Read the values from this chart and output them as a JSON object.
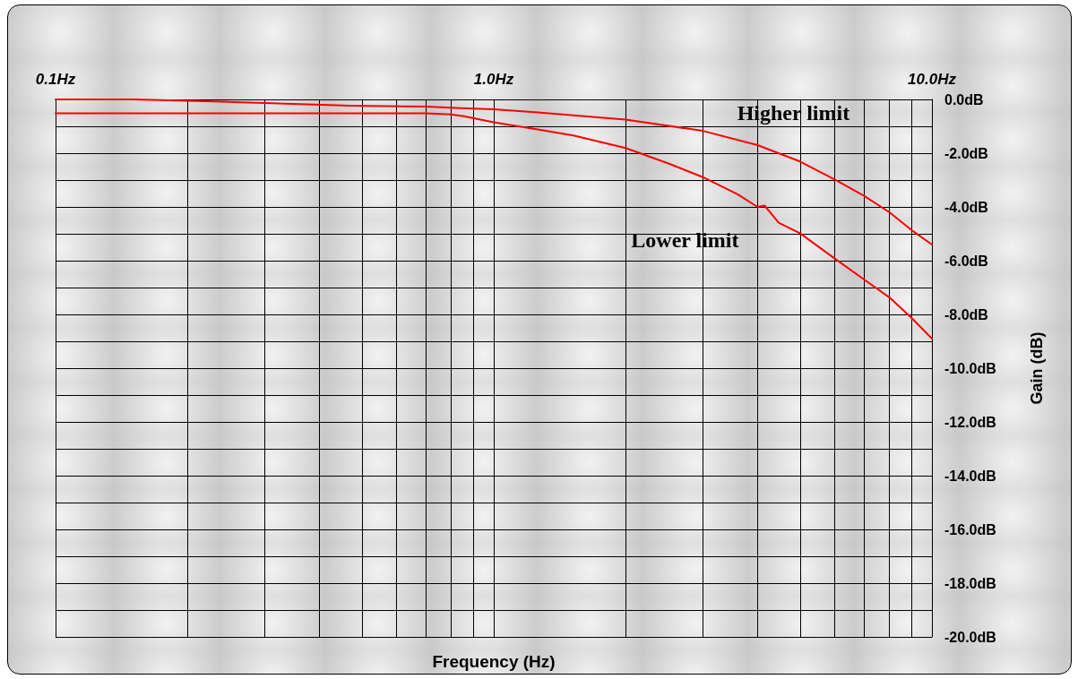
{
  "chart_data": {
    "type": "line",
    "xlabel": "Frequency (Hz)",
    "ylabel": "Gain (dB)",
    "log": "x",
    "grid": true,
    "legend": false,
    "marker": "none",
    "line_style": "solid",
    "xlim": [
      0.1,
      10
    ],
    "ylim": [
      -20,
      0
    ],
    "xticks": [
      {
        "value": 0.1,
        "label": "0.1Hz"
      },
      {
        "value": 0.2,
        "label": null
      },
      {
        "value": 0.3,
        "label": null
      },
      {
        "value": 0.4,
        "label": null
      },
      {
        "value": 0.5,
        "label": null
      },
      {
        "value": 0.6,
        "label": null
      },
      {
        "value": 0.7,
        "label": null
      },
      {
        "value": 0.8,
        "label": null
      },
      {
        "value": 0.9,
        "label": null
      },
      {
        "value": 1,
        "label": "1.0Hz"
      },
      {
        "value": 2,
        "label": null
      },
      {
        "value": 3,
        "label": null
      },
      {
        "value": 4,
        "label": null
      },
      {
        "value": 5,
        "label": null
      },
      {
        "value": 6,
        "label": null
      },
      {
        "value": 7,
        "label": null
      },
      {
        "value": 8,
        "label": null
      },
      {
        "value": 9,
        "label": null
      },
      {
        "value": 10,
        "label": "10.0Hz"
      }
    ],
    "yticks": [
      {
        "value": 0,
        "label": "0.0dB"
      },
      {
        "value": -1,
        "label": null
      },
      {
        "value": -2,
        "label": "-2.0dB"
      },
      {
        "value": -3,
        "label": null
      },
      {
        "value": -4,
        "label": "-4.0dB"
      },
      {
        "value": -5,
        "label": null
      },
      {
        "value": -6,
        "label": "-6.0dB"
      },
      {
        "value": -7,
        "label": null
      },
      {
        "value": -8,
        "label": "-8.0dB"
      },
      {
        "value": -9,
        "label": null
      },
      {
        "value": -10,
        "label": "-10.0dB"
      },
      {
        "value": -11,
        "label": null
      },
      {
        "value": -12,
        "label": "-12.0dB"
      },
      {
        "value": -13,
        "label": null
      },
      {
        "value": -14,
        "label": "-14.0dB"
      },
      {
        "value": -15,
        "label": null
      },
      {
        "value": -16,
        "label": "-16.0dB"
      },
      {
        "value": -17,
        "label": null
      },
      {
        "value": -18,
        "label": "-18.0dB"
      },
      {
        "value": -19,
        "label": null
      },
      {
        "value": -20,
        "label": "-20.0dB"
      }
    ],
    "series": [
      {
        "name": "Higher limit",
        "color": "#ff0000",
        "x": [
          0.1,
          0.15,
          0.2,
          0.3,
          0.47,
          0.7,
          1,
          1.26,
          2,
          3,
          4,
          5,
          6,
          7,
          8,
          9,
          10
        ],
        "values": [
          0,
          0,
          -0.05,
          -0.13,
          -0.23,
          -0.27,
          -0.37,
          -0.48,
          -0.75,
          -1.17,
          -1.7,
          -2.31,
          -2.98,
          -3.59,
          -4.2,
          -4.87,
          -5.4
        ]
      },
      {
        "name": "Lower limit",
        "color": "#ff0000",
        "x": [
          0.1,
          0.3,
          0.5,
          0.7,
          0.8,
          0.85,
          1,
          1.26,
          1.52,
          2,
          2.52,
          3,
          3.6,
          4,
          4.15,
          4.47,
          5,
          6,
          7,
          8,
          9,
          10
        ],
        "values": [
          -0.52,
          -0.52,
          -0.52,
          -0.52,
          -0.56,
          -0.62,
          -0.85,
          -1.12,
          -1.34,
          -1.81,
          -2.4,
          -2.89,
          -3.53,
          -4,
          -3.95,
          -4.59,
          -4.98,
          -5.92,
          -6.7,
          -7.37,
          -8.14,
          -8.9
        ]
      }
    ]
  }
}
